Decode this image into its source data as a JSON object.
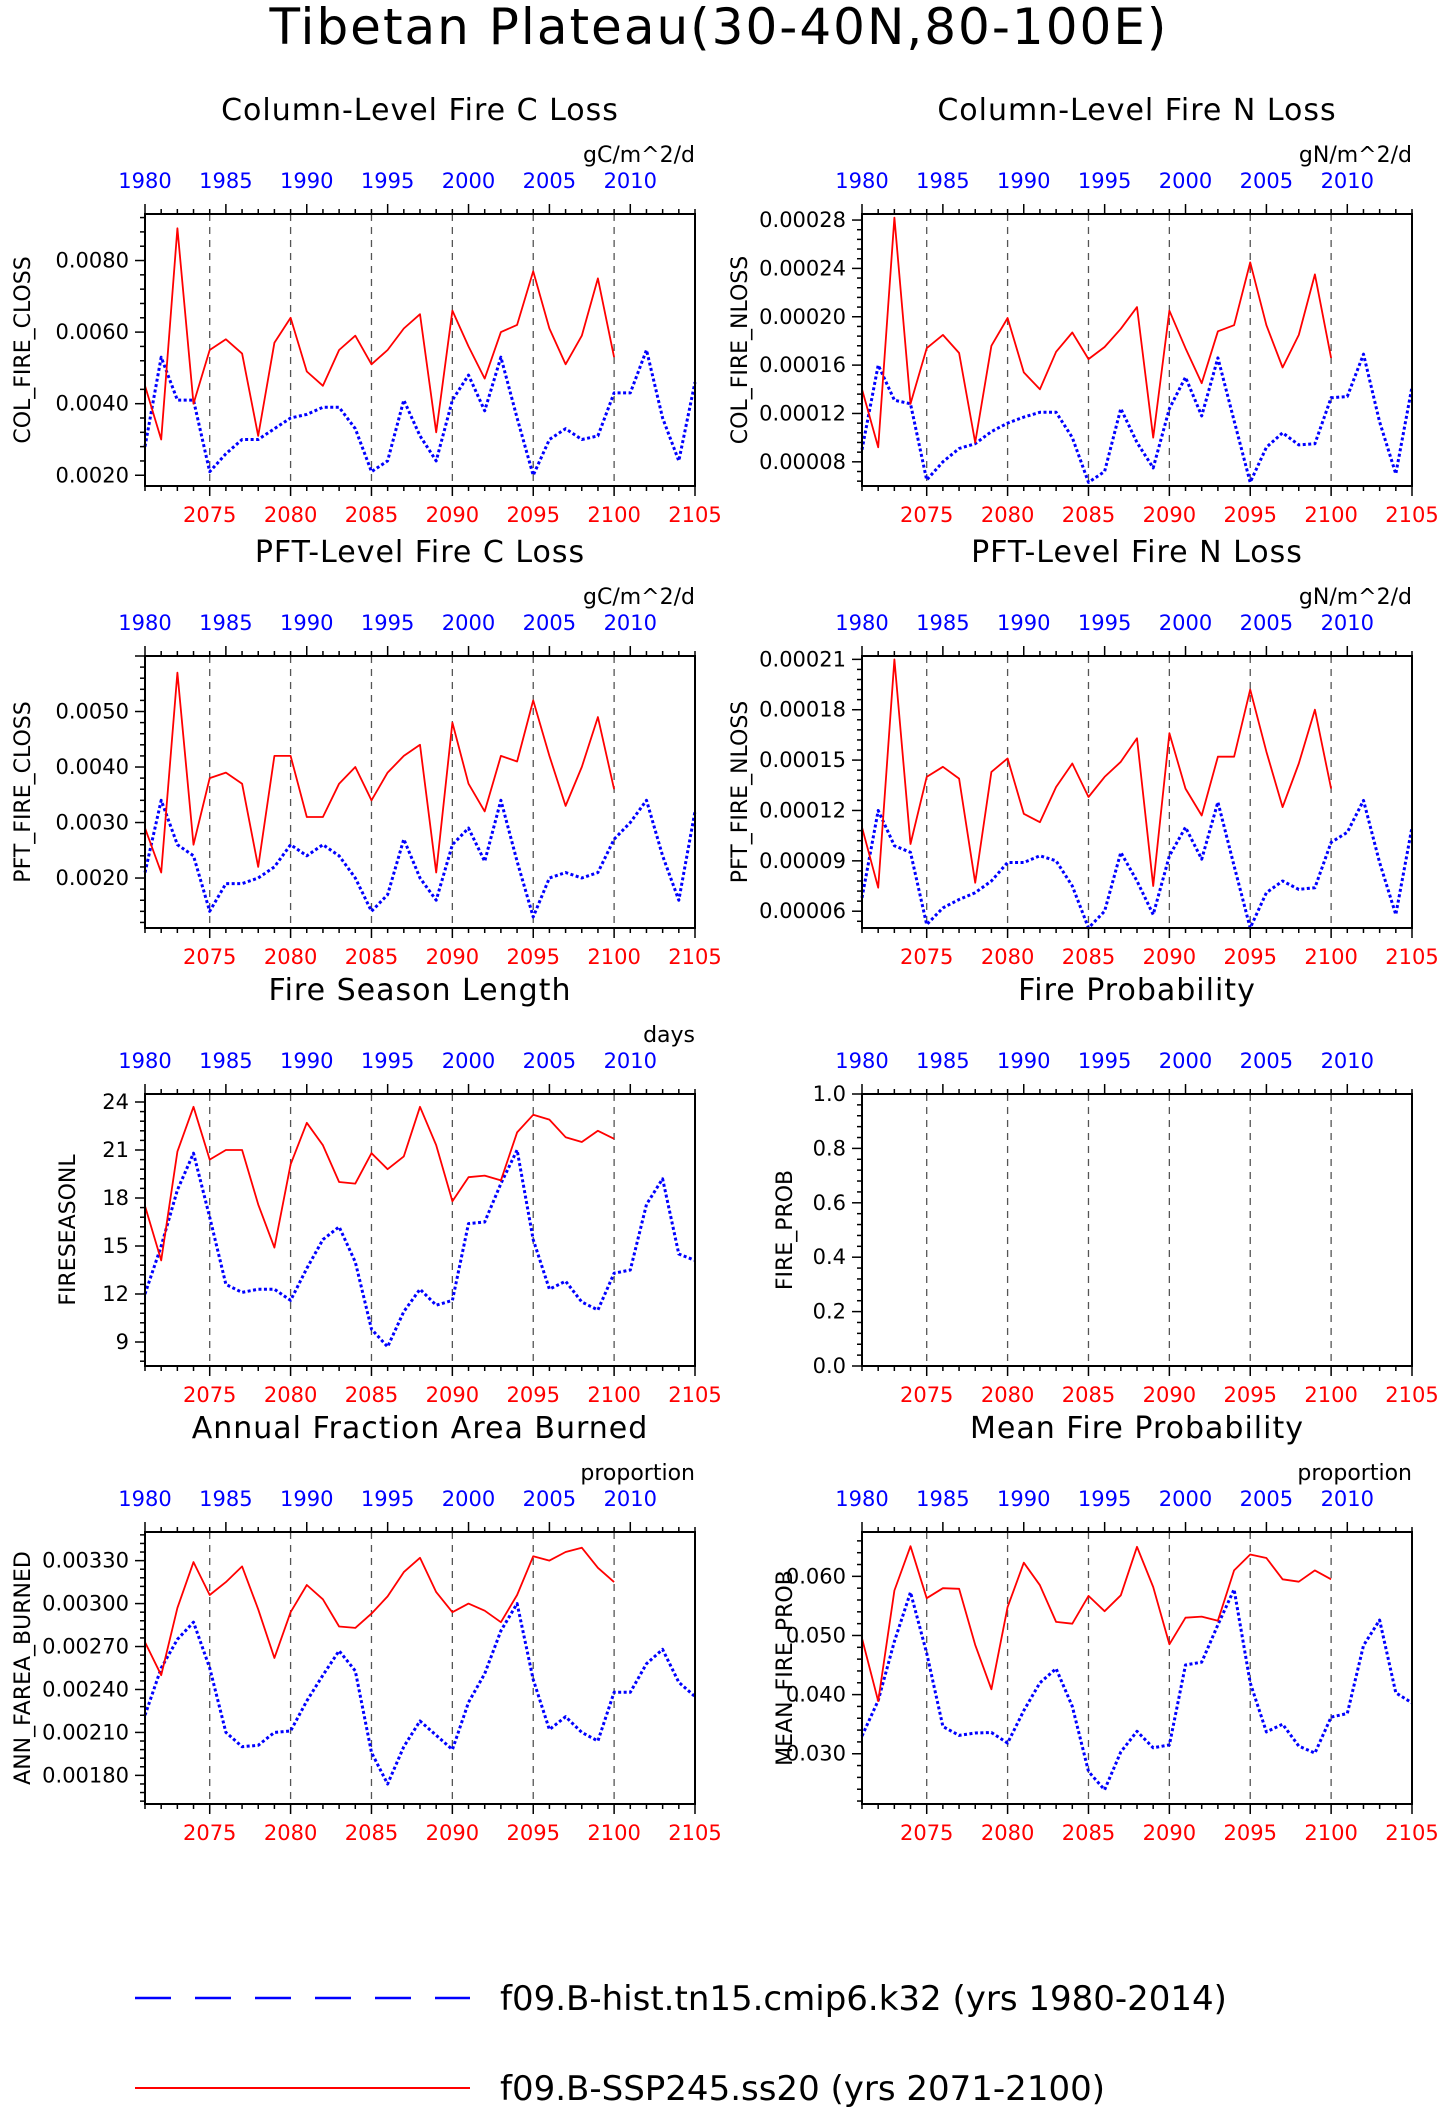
{
  "page": {
    "title": "Tibetan Plateau(30-40N,80-100E)"
  },
  "style": {
    "hist_color": "#0000ff",
    "ssp_color": "#ff0000",
    "axis_color": "#000000",
    "ref_line_color": "#555555"
  },
  "legend": {
    "items": [
      {
        "label": "f09.B-hist.tn15.cmip6.k32 (yrs 1980-2014)",
        "color": "#0000ff",
        "style": "dashed"
      },
      {
        "label": "f09.B-SSP245.ss20 (yrs 2071-2100)",
        "color": "#ff0000",
        "style": "solid"
      }
    ]
  },
  "chart_data": [
    {
      "type": "line",
      "title": "Column-Level Fire C Loss",
      "units": "gC/m^2/d",
      "ylabel": "COL_FIRE_CLOSS",
      "ylim": [
        0.0017,
        0.0093
      ],
      "yticks": [
        "0.0020",
        "0.0040",
        "0.0060",
        "0.0080"
      ],
      "x_bottom": {
        "range": [
          2071,
          2105
        ],
        "ticks": [
          "2075",
          "2080",
          "2085",
          "2090",
          "2095",
          "2100",
          "2105"
        ]
      },
      "x_top": {
        "range": [
          1980,
          2014
        ],
        "ticks": [
          "1980",
          "1985",
          "1990",
          "1995",
          "2000",
          "2005",
          "2010"
        ]
      },
      "series": [
        {
          "name": "f09.B-hist.tn15.cmip6.k32 (yrs 1980-2014)",
          "axis": "top",
          "x_start": 1980,
          "values": [
            0.0028,
            0.0053,
            0.0041,
            0.0041,
            0.0021,
            0.0026,
            0.003,
            0.003,
            0.0033,
            0.0036,
            0.0037,
            0.0039,
            0.0039,
            0.0033,
            0.0021,
            0.0024,
            0.0041,
            0.0031,
            0.0024,
            0.0041,
            0.0048,
            0.0038,
            0.0053,
            0.0036,
            0.002,
            0.003,
            0.0033,
            0.003,
            0.0031,
            0.0043,
            0.0043,
            0.0055,
            0.0036,
            0.0024,
            0.0046
          ]
        },
        {
          "name": "f09.B-SSP245.ss20 (yrs 2071-2100)",
          "axis": "bottom",
          "x_start": 2071,
          "values": [
            0.0045,
            0.003,
            0.0089,
            0.004,
            0.0055,
            0.0058,
            0.0054,
            0.0031,
            0.0057,
            0.0064,
            0.0049,
            0.0045,
            0.0055,
            0.0059,
            0.0051,
            0.0055,
            0.0061,
            0.0065,
            0.0032,
            0.0066,
            0.0056,
            0.0047,
            0.006,
            0.0062,
            0.0077,
            0.0061,
            0.0051,
            0.0059,
            0.0075,
            0.0053
          ]
        }
      ]
    },
    {
      "type": "line",
      "title": "Column-Level Fire N Loss",
      "units": "gN/m^2/d",
      "ylabel": "COL_FIRE_NLOSS",
      "ylim": [
        6e-05,
        0.000285
      ],
      "yticks": [
        "0.00008",
        "0.00012",
        "0.00016",
        "0.00020",
        "0.00024",
        "0.00028"
      ],
      "x_bottom": {
        "range": [
          2071,
          2105
        ],
        "ticks": [
          "2075",
          "2080",
          "2085",
          "2090",
          "2095",
          "2100",
          "2105"
        ]
      },
      "x_top": {
        "range": [
          1980,
          2014
        ],
        "ticks": [
          "1980",
          "1985",
          "1990",
          "1995",
          "2000",
          "2005",
          "2010"
        ]
      },
      "series": [
        {
          "name": "f09.B-hist.tn15.cmip6.k32 (yrs 1980-2014)",
          "axis": "top",
          "x_start": 1980,
          "values": [
            9e-05,
            0.00016,
            0.000131,
            0.000128,
            6.5e-05,
            8e-05,
            9.1e-05,
            9.5e-05,
            0.000105,
            0.000112,
            0.000117,
            0.000121,
            0.000121,
            0.0001,
            6.3e-05,
            7.2e-05,
            0.000124,
            9.6e-05,
            7.5e-05,
            0.000124,
            0.00015,
            0.000118,
            0.000166,
            0.000114,
            6.3e-05,
            9.2e-05,
            0.000104,
            9.4e-05,
            9.5e-05,
            0.000133,
            0.000134,
            0.000169,
            0.000113,
            7e-05,
            0.000142
          ]
        },
        {
          "name": "f09.B-SSP245.ss20 (yrs 2071-2100)",
          "axis": "bottom",
          "x_start": 2071,
          "values": [
            0.00014,
            9.2e-05,
            0.000282,
            0.000128,
            0.000174,
            0.000185,
            0.00017,
            9.6e-05,
            0.000176,
            0.000199,
            0.000154,
            0.00014,
            0.000171,
            0.000187,
            0.000165,
            0.000175,
            0.00019,
            0.000208,
            0.0001,
            0.000205,
            0.000174,
            0.000145,
            0.000188,
            0.000193,
            0.000245,
            0.000193,
            0.000158,
            0.000185,
            0.000235,
            0.000166
          ]
        }
      ]
    },
    {
      "type": "line",
      "title": "PFT-Level Fire C Loss",
      "units": "gC/m^2/d",
      "ylabel": "PFT_FIRE_CLOSS",
      "ylim": [
        0.0011,
        0.006
      ],
      "yticks": [
        "0.0020",
        "0.0030",
        "0.0040",
        "0.0050"
      ],
      "x_bottom": {
        "range": [
          2071,
          2105
        ],
        "ticks": [
          "2075",
          "2080",
          "2085",
          "2090",
          "2095",
          "2100",
          "2105"
        ]
      },
      "x_top": {
        "range": [
          1980,
          2014
        ],
        "ticks": [
          "1980",
          "1985",
          "1990",
          "1995",
          "2000",
          "2005",
          "2010"
        ]
      },
      "series": [
        {
          "name": "f09.B-hist.tn15.cmip6.k32 (yrs 1980-2014)",
          "axis": "top",
          "x_start": 1980,
          "values": [
            0.0021,
            0.0034,
            0.0026,
            0.0024,
            0.0014,
            0.0019,
            0.0019,
            0.002,
            0.0022,
            0.0026,
            0.0024,
            0.0026,
            0.0024,
            0.002,
            0.0014,
            0.0017,
            0.0027,
            0.002,
            0.0016,
            0.0026,
            0.0029,
            0.0023,
            0.0034,
            0.0023,
            0.0013,
            0.002,
            0.0021,
            0.002,
            0.0021,
            0.0027,
            0.003,
            0.0034,
            0.0024,
            0.0016,
            0.0032
          ]
        },
        {
          "name": "f09.B-SSP245.ss20 (yrs 2071-2100)",
          "axis": "bottom",
          "x_start": 2071,
          "values": [
            0.0029,
            0.0021,
            0.0057,
            0.0026,
            0.0038,
            0.0039,
            0.0037,
            0.0022,
            0.0042,
            0.0042,
            0.0031,
            0.0031,
            0.0037,
            0.004,
            0.0034,
            0.0039,
            0.0042,
            0.0044,
            0.0021,
            0.0048,
            0.0037,
            0.0032,
            0.0042,
            0.0041,
            0.0052,
            0.0042,
            0.0033,
            0.004,
            0.0049,
            0.0036
          ]
        }
      ]
    },
    {
      "type": "line",
      "title": "PFT-Level Fire N Loss",
      "units": "gN/m^2/d",
      "ylabel": "PFT_FIRE_NLOSS",
      "ylim": [
        5e-05,
        0.000212
      ],
      "yticks": [
        "0.00006",
        "0.00009",
        "0.00012",
        "0.00015",
        "0.00018",
        "0.00021"
      ],
      "x_bottom": {
        "range": [
          2071,
          2105
        ],
        "ticks": [
          "2075",
          "2080",
          "2085",
          "2090",
          "2095",
          "2100",
          "2105"
        ]
      },
      "x_top": {
        "range": [
          1980,
          2014
        ],
        "ticks": [
          "1980",
          "1985",
          "1990",
          "1995",
          "2000",
          "2005",
          "2010"
        ]
      },
      "series": [
        {
          "name": "f09.B-hist.tn15.cmip6.k32 (yrs 1980-2014)",
          "axis": "top",
          "x_start": 1980,
          "values": [
            6.8e-05,
            0.00012,
            9.9e-05,
            9.5e-05,
            5.2e-05,
            6.2e-05,
            6.7e-05,
            7.1e-05,
            7.8e-05,
            8.9e-05,
            8.9e-05,
            9.3e-05,
            9e-05,
            7.5e-05,
            5e-05,
            6e-05,
            9.5e-05,
            7.8e-05,
            5.8e-05,
            9.3e-05,
            0.00011,
            9.1e-05,
            0.000125,
            8.7e-05,
            5e-05,
            7.1e-05,
            7.8e-05,
            7.3e-05,
            7.4e-05,
            0.000101,
            0.000107,
            0.000126,
            8.9e-05,
            5.8e-05,
            0.00011
          ]
        },
        {
          "name": "f09.B-SSP245.ss20 (yrs 2071-2100)",
          "axis": "bottom",
          "x_start": 2071,
          "values": [
            0.00011,
            7.4e-05,
            0.00021,
            0.0001,
            0.00014,
            0.000146,
            0.000139,
            7.7e-05,
            0.000143,
            0.000151,
            0.000118,
            0.000113,
            0.000134,
            0.000148,
            0.000128,
            0.00014,
            0.000149,
            0.000163,
            7.5e-05,
            0.000166,
            0.000133,
            0.000117,
            0.000152,
            0.000152,
            0.000192,
            0.000155,
            0.000122,
            0.000148,
            0.00018,
            0.000133
          ]
        }
      ]
    },
    {
      "type": "line",
      "title": "Fire Season Length",
      "units": "days",
      "ylabel": "FIRESEASONL",
      "ylim": [
        7.5,
        24.5
      ],
      "yticks": [
        "9",
        "12",
        "15",
        "18",
        "21",
        "24"
      ],
      "x_bottom": {
        "range": [
          2071,
          2105
        ],
        "ticks": [
          "2075",
          "2080",
          "2085",
          "2090",
          "2095",
          "2100",
          "2105"
        ]
      },
      "x_top": {
        "range": [
          1980,
          2014
        ],
        "ticks": [
          "1980",
          "1985",
          "1990",
          "1995",
          "2000",
          "2005",
          "2010"
        ]
      },
      "series": [
        {
          "name": "f09.B-hist.tn15.cmip6.k32 (yrs 1980-2014)",
          "axis": "top",
          "x_start": 1980,
          "values": [
            12.0,
            15.0,
            18.5,
            20.8,
            16.8,
            12.6,
            12.1,
            12.3,
            12.3,
            11.6,
            13.6,
            15.4,
            16.2,
            14.0,
            9.8,
            8.7,
            10.9,
            12.3,
            11.3,
            11.6,
            16.4,
            16.5,
            18.9,
            21.0,
            15.4,
            12.3,
            12.8,
            11.5,
            11.0,
            13.3,
            13.5,
            17.6,
            19.2,
            14.5,
            14.1
          ]
        },
        {
          "name": "f09.B-SSP245.ss20 (yrs 2071-2100)",
          "axis": "bottom",
          "x_start": 2071,
          "values": [
            17.5,
            14.1,
            20.9,
            23.7,
            20.4,
            21.0,
            21.0,
            17.6,
            14.9,
            20.1,
            22.7,
            21.3,
            19.0,
            18.9,
            20.8,
            19.8,
            20.6,
            23.7,
            21.3,
            17.8,
            19.3,
            19.4,
            19.1,
            22.1,
            23.2,
            22.9,
            21.8,
            21.5,
            22.2,
            21.7
          ]
        }
      ]
    },
    {
      "type": "line",
      "title": "Fire Probability",
      "units": "",
      "ylabel": "FIRE_PROB",
      "ylim": [
        0.0,
        1.0
      ],
      "yticks": [
        "0.0",
        "0.2",
        "0.4",
        "0.6",
        "0.8",
        "1.0"
      ],
      "x_bottom": {
        "range": [
          2071,
          2105
        ],
        "ticks": [
          "2075",
          "2080",
          "2085",
          "2090",
          "2095",
          "2100",
          "2105"
        ]
      },
      "x_top": {
        "range": [
          1980,
          2014
        ],
        "ticks": [
          "1980",
          "1985",
          "1990",
          "1995",
          "2000",
          "2005",
          "2010"
        ]
      },
      "series": []
    },
    {
      "type": "line",
      "title": "Annual Fraction Area Burned",
      "units": "proportion",
      "ylabel": "ANN_FAREA_BURNED",
      "ylim": [
        0.0016,
        0.0035
      ],
      "yticks": [
        "0.00180",
        "0.00210",
        "0.00240",
        "0.00270",
        "0.00300",
        "0.00330"
      ],
      "x_bottom": {
        "range": [
          2071,
          2105
        ],
        "ticks": [
          "2075",
          "2080",
          "2085",
          "2090",
          "2095",
          "2100",
          "2105"
        ]
      },
      "x_top": {
        "range": [
          1980,
          2014
        ],
        "ticks": [
          "1980",
          "1985",
          "1990",
          "1995",
          "2000",
          "2005",
          "2010"
        ]
      },
      "series": [
        {
          "name": "f09.B-hist.tn15.cmip6.k32 (yrs 1980-2014)",
          "axis": "top",
          "x_start": 1980,
          "values": [
            0.00222,
            0.00255,
            0.00275,
            0.00287,
            0.00255,
            0.0021,
            0.002,
            0.00201,
            0.0021,
            0.00211,
            0.00232,
            0.0025,
            0.00267,
            0.00253,
            0.00196,
            0.00174,
            0.002,
            0.00218,
            0.00208,
            0.00198,
            0.00231,
            0.00251,
            0.00281,
            0.003,
            0.00247,
            0.00212,
            0.00221,
            0.0021,
            0.00204,
            0.00238,
            0.00238,
            0.00258,
            0.00268,
            0.00245,
            0.00235
          ]
        },
        {
          "name": "f09.B-SSP245.ss20 (yrs 2071-2100)",
          "axis": "bottom",
          "x_start": 2071,
          "values": [
            0.00273,
            0.0025,
            0.00297,
            0.00329,
            0.00306,
            0.00315,
            0.00326,
            0.00296,
            0.00262,
            0.00294,
            0.00313,
            0.00303,
            0.00284,
            0.00283,
            0.00293,
            0.00305,
            0.00322,
            0.00332,
            0.00308,
            0.00294,
            0.003,
            0.00295,
            0.00287,
            0.00306,
            0.00333,
            0.0033,
            0.00336,
            0.00339,
            0.00325,
            0.00315
          ]
        }
      ]
    },
    {
      "type": "line",
      "title": "Mean Fire Probability",
      "units": "proportion",
      "ylabel": "MEAN_FIRE_PROB",
      "ylim": [
        0.0215,
        0.0675
      ],
      "yticks": [
        "0.030",
        "0.040",
        "0.050",
        "0.060"
      ],
      "x_bottom": {
        "range": [
          2071,
          2105
        ],
        "ticks": [
          "2075",
          "2080",
          "2085",
          "2090",
          "2095",
          "2100",
          "2105"
        ]
      },
      "x_top": {
        "range": [
          1980,
          2014
        ],
        "ticks": [
          "1980",
          "1985",
          "1990",
          "1995",
          "2000",
          "2005",
          "2010"
        ]
      },
      "series": [
        {
          "name": "f09.B-hist.tn15.cmip6.k32 (yrs 1980-2014)",
          "axis": "top",
          "x_start": 1980,
          "values": [
            0.033,
            0.039,
            0.049,
            0.0573,
            0.047,
            0.0346,
            0.0331,
            0.0335,
            0.0336,
            0.0318,
            0.0373,
            0.042,
            0.0444,
            0.038,
            0.027,
            0.0239,
            0.0303,
            0.0338,
            0.031,
            0.0315,
            0.045,
            0.0455,
            0.0518,
            0.0578,
            0.042,
            0.0337,
            0.035,
            0.0313,
            0.0301,
            0.0362,
            0.0368,
            0.0483,
            0.0526,
            0.0403,
            0.0386
          ]
        },
        {
          "name": "f09.B-SSP245.ss20 (yrs 2071-2100)",
          "axis": "bottom",
          "x_start": 2071,
          "values": [
            0.0495,
            0.0389,
            0.0576,
            0.0651,
            0.0563,
            0.058,
            0.0579,
            0.0484,
            0.0409,
            0.0548,
            0.0623,
            0.0585,
            0.0523,
            0.052,
            0.0567,
            0.0541,
            0.0568,
            0.065,
            0.0582,
            0.0485,
            0.053,
            0.0532,
            0.0525,
            0.061,
            0.0637,
            0.0631,
            0.0595,
            0.0591,
            0.061,
            0.0595
          ]
        }
      ]
    }
  ]
}
